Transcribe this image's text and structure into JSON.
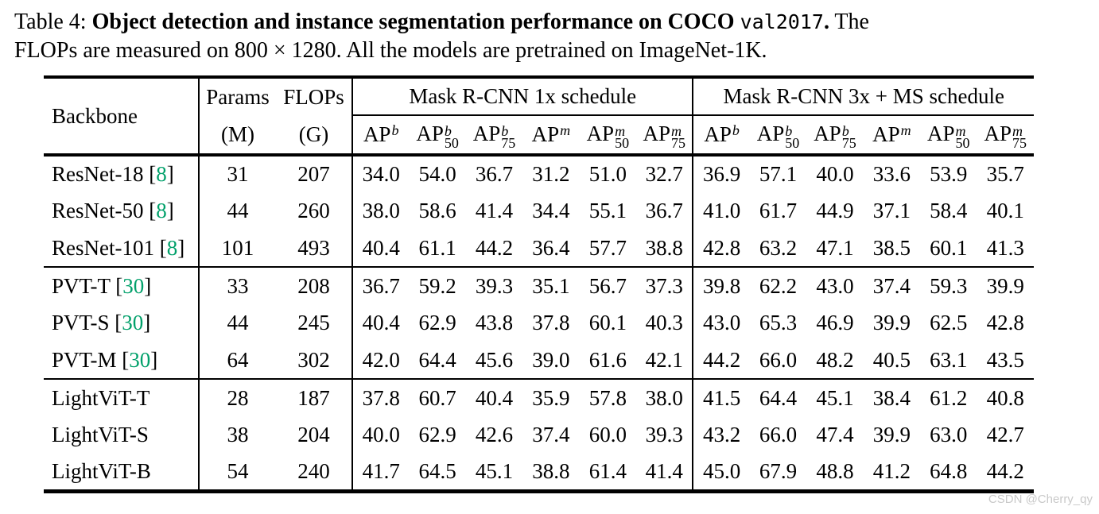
{
  "caption": {
    "label": "Table 4: ",
    "title_bold": "Object detection and instance segmentation performance on COCO ",
    "code": "val2017",
    "period": ".",
    "line1_rest": " The",
    "line2": "FLOPs are measured on 800 × 1280. All the models are pretrained on ImageNet-1K."
  },
  "table": {
    "headers": {
      "backbone": "Backbone",
      "params": "Params",
      "params_unit": "(M)",
      "flops": "FLOPs",
      "flops_unit": "(G)",
      "schedule1": "Mask R-CNN 1x schedule",
      "schedule2": "Mask R-CNN 3x + MS schedule",
      "ap_columns": [
        {
          "base": "AP",
          "sup": "b",
          "sub": ""
        },
        {
          "base": "AP",
          "sup": "b",
          "sub": "50"
        },
        {
          "base": "AP",
          "sup": "b",
          "sub": "75"
        },
        {
          "base": "AP",
          "sup": "m",
          "sub": ""
        },
        {
          "base": "AP",
          "sup": "m",
          "sub": "50"
        },
        {
          "base": "AP",
          "sup": "m",
          "sub": "75"
        }
      ]
    },
    "groups": [
      {
        "rows": [
          {
            "backbone": "ResNet-18",
            "citation": "8",
            "params": "31",
            "flops": "207",
            "mask_rcnn_1x": [
              "34.0",
              "54.0",
              "36.7",
              "31.2",
              "51.0",
              "32.7"
            ],
            "mask_rcnn_3x": [
              "36.9",
              "57.1",
              "40.0",
              "33.6",
              "53.9",
              "35.7"
            ]
          },
          {
            "backbone": "ResNet-50",
            "citation": "8",
            "params": "44",
            "flops": "260",
            "mask_rcnn_1x": [
              "38.0",
              "58.6",
              "41.4",
              "34.4",
              "55.1",
              "36.7"
            ],
            "mask_rcnn_3x": [
              "41.0",
              "61.7",
              "44.9",
              "37.1",
              "58.4",
              "40.1"
            ]
          },
          {
            "backbone": "ResNet-101",
            "citation": "8",
            "params": "101",
            "flops": "493",
            "mask_rcnn_1x": [
              "40.4",
              "61.1",
              "44.2",
              "36.4",
              "57.7",
              "38.8"
            ],
            "mask_rcnn_3x": [
              "42.8",
              "63.2",
              "47.1",
              "38.5",
              "60.1",
              "41.3"
            ]
          }
        ]
      },
      {
        "rows": [
          {
            "backbone": "PVT-T",
            "citation": "30",
            "params": "33",
            "flops": "208",
            "mask_rcnn_1x": [
              "36.7",
              "59.2",
              "39.3",
              "35.1",
              "56.7",
              "37.3"
            ],
            "mask_rcnn_3x": [
              "39.8",
              "62.2",
              "43.0",
              "37.4",
              "59.3",
              "39.9"
            ]
          },
          {
            "backbone": "PVT-S",
            "citation": "30",
            "params": "44",
            "flops": "245",
            "mask_rcnn_1x": [
              "40.4",
              "62.9",
              "43.8",
              "37.8",
              "60.1",
              "40.3"
            ],
            "mask_rcnn_3x": [
              "43.0",
              "65.3",
              "46.9",
              "39.9",
              "62.5",
              "42.8"
            ]
          },
          {
            "backbone": "PVT-M",
            "citation": "30",
            "params": "64",
            "flops": "302",
            "mask_rcnn_1x": [
              "42.0",
              "64.4",
              "45.6",
              "39.0",
              "61.6",
              "42.1"
            ],
            "mask_rcnn_3x": [
              "44.2",
              "66.0",
              "48.2",
              "40.5",
              "63.1",
              "43.5"
            ]
          }
        ]
      },
      {
        "rows": [
          {
            "backbone": "LightViT-T",
            "citation": "",
            "params": "28",
            "flops": "187",
            "mask_rcnn_1x": [
              "37.8",
              "60.7",
              "40.4",
              "35.9",
              "57.8",
              "38.0"
            ],
            "mask_rcnn_3x": [
              "41.5",
              "64.4",
              "45.1",
              "38.4",
              "61.2",
              "40.8"
            ]
          },
          {
            "backbone": "LightViT-S",
            "citation": "",
            "params": "38",
            "flops": "204",
            "mask_rcnn_1x": [
              "40.0",
              "62.9",
              "42.6",
              "37.4",
              "60.0",
              "39.3"
            ],
            "mask_rcnn_3x": [
              "43.2",
              "66.0",
              "47.4",
              "39.9",
              "63.0",
              "42.7"
            ]
          },
          {
            "backbone": "LightViT-B",
            "citation": "",
            "params": "54",
            "flops": "240",
            "mask_rcnn_1x": [
              "41.7",
              "64.5",
              "45.1",
              "38.8",
              "61.4",
              "41.4"
            ],
            "mask_rcnn_3x": [
              "45.0",
              "67.9",
              "48.8",
              "41.2",
              "64.8",
              "44.2"
            ]
          }
        ]
      }
    ]
  },
  "watermark": "CSDN @Cherry_qy",
  "colors": {
    "citation_green": "#00a06a",
    "watermark_gray": "#c9c9c9"
  }
}
